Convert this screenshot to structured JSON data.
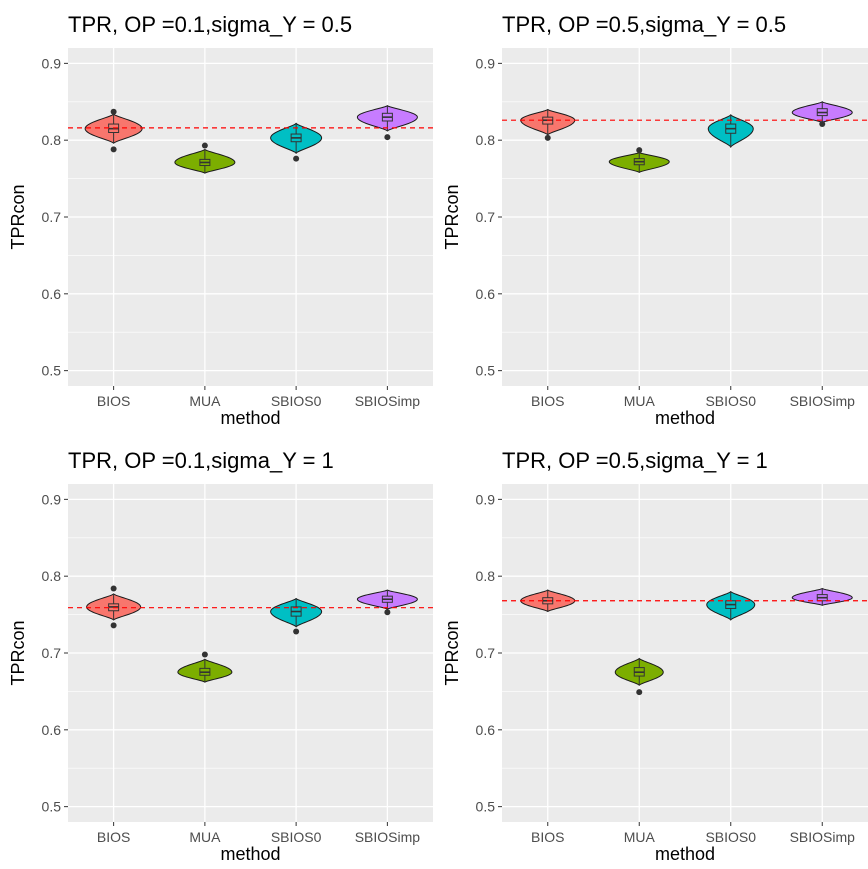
{
  "chart_data": [
    {
      "type": "violin",
      "title": "TPR, OP =0.1,sigma_Y = 0.5",
      "xlabel": "method",
      "ylabel": "TPRcon",
      "categories": [
        "BIOS",
        "MUA",
        "SBIOS0",
        "SBIOSimp"
      ],
      "ylim": [
        0.48,
        0.92
      ],
      "yticks": [
        0.5,
        0.6,
        0.7,
        0.8,
        0.9
      ],
      "reference_line": 0.816,
      "grid": true,
      "series": [
        {
          "category": "BIOS",
          "color": "#F8766D",
          "min": 0.796,
          "max": 0.834,
          "q1": 0.81,
          "median": 0.815,
          "q3": 0.821,
          "outliers": [
            0.837,
            0.788
          ],
          "max_halfwidth": 0.95
        },
        {
          "category": "MUA",
          "color": "#7CAE00",
          "min": 0.757,
          "max": 0.788,
          "q1": 0.767,
          "median": 0.771,
          "q3": 0.775,
          "outliers": [
            0.793
          ],
          "max_halfwidth": 1.0
        },
        {
          "category": "SBIOS0",
          "color": "#00BFC4",
          "min": 0.783,
          "max": 0.822,
          "q1": 0.798,
          "median": 0.803,
          "q3": 0.808,
          "outliers": [
            0.776
          ],
          "max_halfwidth": 0.85
        },
        {
          "category": "SBIOSimp",
          "color": "#C77CFF",
          "min": 0.812,
          "max": 0.845,
          "q1": 0.825,
          "median": 0.83,
          "q3": 0.835,
          "outliers": [
            0.804
          ],
          "max_halfwidth": 1.0
        }
      ]
    },
    {
      "type": "violin",
      "title": "TPR, OP =0.5,sigma_Y = 0.5",
      "xlabel": "method",
      "ylabel": "TPRcon",
      "categories": [
        "BIOS",
        "MUA",
        "SBIOS0",
        "SBIOSimp"
      ],
      "ylim": [
        0.48,
        0.92
      ],
      "yticks": [
        0.5,
        0.6,
        0.7,
        0.8,
        0.9
      ],
      "reference_line": 0.826,
      "grid": true,
      "series": [
        {
          "category": "BIOS",
          "color": "#F8766D",
          "min": 0.807,
          "max": 0.84,
          "q1": 0.821,
          "median": 0.826,
          "q3": 0.83,
          "outliers": [
            0.803
          ],
          "max_halfwidth": 0.9
        },
        {
          "category": "MUA",
          "color": "#7CAE00",
          "min": 0.758,
          "max": 0.784,
          "q1": 0.768,
          "median": 0.772,
          "q3": 0.776,
          "outliers": [
            0.787
          ],
          "max_halfwidth": 1.0
        },
        {
          "category": "SBIOS0",
          "color": "#00BFC4",
          "min": 0.791,
          "max": 0.833,
          "q1": 0.809,
          "median": 0.815,
          "q3": 0.821,
          "outliers": [],
          "max_halfwidth": 0.75
        },
        {
          "category": "SBIOSimp",
          "color": "#C77CFF",
          "min": 0.823,
          "max": 0.85,
          "q1": 0.832,
          "median": 0.836,
          "q3": 0.841,
          "outliers": [
            0.821
          ],
          "max_halfwidth": 1.0
        }
      ]
    },
    {
      "type": "violin",
      "title": "TPR, OP =0.1,sigma_Y = 1",
      "xlabel": "method",
      "ylabel": "TPRcon",
      "categories": [
        "BIOS",
        "MUA",
        "SBIOS0",
        "SBIOSimp"
      ],
      "ylim": [
        0.48,
        0.92
      ],
      "yticks": [
        0.5,
        0.6,
        0.7,
        0.8,
        0.9
      ],
      "reference_line": 0.759,
      "grid": true,
      "series": [
        {
          "category": "BIOS",
          "color": "#F8766D",
          "min": 0.743,
          "max": 0.777,
          "q1": 0.755,
          "median": 0.76,
          "q3": 0.764,
          "outliers": [
            0.784,
            0.736
          ],
          "max_halfwidth": 0.9
        },
        {
          "category": "MUA",
          "color": "#7CAE00",
          "min": 0.662,
          "max": 0.692,
          "q1": 0.671,
          "median": 0.675,
          "q3": 0.68,
          "outliers": [
            0.698
          ],
          "max_halfwidth": 0.9
        },
        {
          "category": "SBIOS0",
          "color": "#00BFC4",
          "min": 0.734,
          "max": 0.771,
          "q1": 0.748,
          "median": 0.754,
          "q3": 0.76,
          "outliers": [
            0.728
          ],
          "max_halfwidth": 0.85
        },
        {
          "category": "SBIOSimp",
          "color": "#C77CFF",
          "min": 0.757,
          "max": 0.782,
          "q1": 0.766,
          "median": 0.77,
          "q3": 0.774,
          "outliers": [
            0.753
          ],
          "max_halfwidth": 1.0
        }
      ]
    },
    {
      "type": "violin",
      "title": "TPR, OP =0.5,sigma_Y = 1",
      "xlabel": "method",
      "ylabel": "TPRcon",
      "categories": [
        "BIOS",
        "MUA",
        "SBIOS0",
        "SBIOSimp"
      ],
      "ylim": [
        0.48,
        0.92
      ],
      "yticks": [
        0.5,
        0.6,
        0.7,
        0.8,
        0.9
      ],
      "reference_line": 0.768,
      "grid": true,
      "series": [
        {
          "category": "BIOS",
          "color": "#F8766D",
          "min": 0.754,
          "max": 0.782,
          "q1": 0.764,
          "median": 0.768,
          "q3": 0.772,
          "outliers": [],
          "max_halfwidth": 0.9
        },
        {
          "category": "MUA",
          "color": "#7CAE00",
          "min": 0.658,
          "max": 0.693,
          "q1": 0.67,
          "median": 0.675,
          "q3": 0.681,
          "outliers": [
            0.649
          ],
          "max_halfwidth": 0.8
        },
        {
          "category": "SBIOS0",
          "color": "#00BFC4",
          "min": 0.743,
          "max": 0.78,
          "q1": 0.758,
          "median": 0.763,
          "q3": 0.768,
          "outliers": [],
          "max_halfwidth": 0.8
        },
        {
          "category": "SBIOSimp",
          "color": "#C77CFF",
          "min": 0.762,
          "max": 0.784,
          "q1": 0.768,
          "median": 0.772,
          "q3": 0.776,
          "outliers": [],
          "max_halfwidth": 1.0
        }
      ]
    }
  ]
}
